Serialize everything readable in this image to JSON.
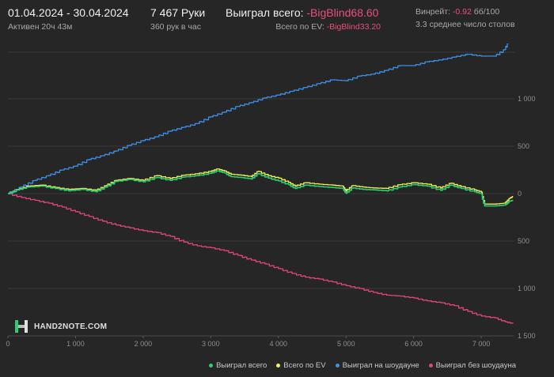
{
  "header": {
    "date_range": "01.04.2024 - 30.04.2024",
    "active_time": "Активен 20ч 43м",
    "hands": "7 467 Руки",
    "hands_per_hour": "360 рук в час",
    "won_total_label": "Выиграл всего:",
    "won_total_value": "-BigBlind68.60",
    "ev_label": "Всего по EV:",
    "ev_value": "-BigBlind33.20",
    "winrate_label": "Винрейт:",
    "winrate_value": "-0.92",
    "winrate_unit": "бб/100",
    "avg_tables": "3.3 среднее число столов"
  },
  "logo": {
    "text": "HAND2NOTE.COM"
  },
  "colors": {
    "won_total": "#2ecc71",
    "ev": "#f2f25a",
    "showdown": "#3d8fe8",
    "no_showdown": "#e0457a",
    "negative_text": "#e94f7c"
  },
  "chart_data": {
    "type": "line",
    "xlim": [
      0,
      7467
    ],
    "ylim": [
      -1500,
      1500
    ],
    "x_ticks": [
      0,
      1000,
      2000,
      3000,
      4000,
      5000,
      6000,
      7000
    ],
    "x_tick_labels": [
      "0",
      "1 000",
      "2 000",
      "3 000",
      "4 000",
      "5 000",
      "6 000",
      "7 000"
    ],
    "y_ticks": [
      1000,
      500,
      0,
      -500,
      -1000,
      -1500
    ],
    "y_tick_labels": [
      "1 000",
      "500",
      "0",
      "500",
      "1 000",
      "1 500"
    ],
    "grid": true,
    "legend_position": "bottom-right",
    "series": [
      {
        "name": "Выиграл всего",
        "color": "#2ecc71",
        "points": [
          [
            0,
            0
          ],
          [
            150,
            40
          ],
          [
            300,
            70
          ],
          [
            500,
            80
          ],
          [
            700,
            55
          ],
          [
            900,
            30
          ],
          [
            1100,
            45
          ],
          [
            1300,
            20
          ],
          [
            1450,
            70
          ],
          [
            1600,
            130
          ],
          [
            1800,
            150
          ],
          [
            2000,
            125
          ],
          [
            2200,
            170
          ],
          [
            2400,
            140
          ],
          [
            2600,
            175
          ],
          [
            2800,
            190
          ],
          [
            3000,
            215
          ],
          [
            3100,
            240
          ],
          [
            3200,
            220
          ],
          [
            3300,
            180
          ],
          [
            3450,
            170
          ],
          [
            3600,
            155
          ],
          [
            3700,
            210
          ],
          [
            3850,
            165
          ],
          [
            4000,
            135
          ],
          [
            4150,
            95
          ],
          [
            4250,
            55
          ],
          [
            4400,
            90
          ],
          [
            4600,
            75
          ],
          [
            4800,
            65
          ],
          [
            4950,
            55
          ],
          [
            5000,
            5
          ],
          [
            5100,
            60
          ],
          [
            5250,
            45
          ],
          [
            5400,
            40
          ],
          [
            5600,
            30
          ],
          [
            5800,
            70
          ],
          [
            6000,
            95
          ],
          [
            6200,
            80
          ],
          [
            6400,
            35
          ],
          [
            6550,
            90
          ],
          [
            6700,
            55
          ],
          [
            6900,
            20
          ],
          [
            7000,
            0
          ],
          [
            7050,
            -130
          ],
          [
            7200,
            -130
          ],
          [
            7350,
            -120
          ],
          [
            7420,
            -80
          ],
          [
            7467,
            -70
          ]
        ]
      },
      {
        "name": "Всего по EV",
        "color": "#f2f25a",
        "points": [
          [
            0,
            0
          ],
          [
            150,
            45
          ],
          [
            300,
            80
          ],
          [
            500,
            90
          ],
          [
            700,
            65
          ],
          [
            900,
            45
          ],
          [
            1100,
            55
          ],
          [
            1300,
            35
          ],
          [
            1450,
            85
          ],
          [
            1600,
            140
          ],
          [
            1800,
            160
          ],
          [
            2000,
            140
          ],
          [
            2200,
            190
          ],
          [
            2400,
            160
          ],
          [
            2600,
            195
          ],
          [
            2800,
            210
          ],
          [
            3000,
            235
          ],
          [
            3100,
            260
          ],
          [
            3200,
            240
          ],
          [
            3300,
            205
          ],
          [
            3450,
            195
          ],
          [
            3600,
            180
          ],
          [
            3700,
            235
          ],
          [
            3850,
            190
          ],
          [
            4000,
            165
          ],
          [
            4150,
            120
          ],
          [
            4250,
            80
          ],
          [
            4400,
            115
          ],
          [
            4600,
            100
          ],
          [
            4800,
            90
          ],
          [
            4950,
            80
          ],
          [
            5000,
            30
          ],
          [
            5100,
            85
          ],
          [
            5250,
            70
          ],
          [
            5400,
            60
          ],
          [
            5600,
            55
          ],
          [
            5800,
            95
          ],
          [
            6000,
            115
          ],
          [
            6200,
            100
          ],
          [
            6400,
            60
          ],
          [
            6550,
            110
          ],
          [
            6700,
            75
          ],
          [
            6900,
            40
          ],
          [
            7000,
            20
          ],
          [
            7050,
            -110
          ],
          [
            7200,
            -110
          ],
          [
            7350,
            -100
          ],
          [
            7420,
            -50
          ],
          [
            7467,
            -30
          ]
        ]
      },
      {
        "name": "Выиграл на шоудауне",
        "color": "#3d8fe8",
        "points": [
          [
            0,
            0
          ],
          [
            200,
            70
          ],
          [
            400,
            140
          ],
          [
            600,
            190
          ],
          [
            800,
            250
          ],
          [
            1000,
            290
          ],
          [
            1200,
            360
          ],
          [
            1400,
            400
          ],
          [
            1600,
            450
          ],
          [
            1800,
            510
          ],
          [
            2000,
            560
          ],
          [
            2200,
            600
          ],
          [
            2400,
            660
          ],
          [
            2600,
            700
          ],
          [
            2800,
            740
          ],
          [
            3000,
            810
          ],
          [
            3200,
            860
          ],
          [
            3400,
            920
          ],
          [
            3600,
            960
          ],
          [
            3800,
            1010
          ],
          [
            4000,
            1040
          ],
          [
            4200,
            1080
          ],
          [
            4400,
            1120
          ],
          [
            4600,
            1160
          ],
          [
            4800,
            1200
          ],
          [
            5000,
            1190
          ],
          [
            5200,
            1240
          ],
          [
            5400,
            1260
          ],
          [
            5600,
            1300
          ],
          [
            5800,
            1350
          ],
          [
            6000,
            1350
          ],
          [
            6200,
            1390
          ],
          [
            6400,
            1410
          ],
          [
            6600,
            1440
          ],
          [
            6800,
            1470
          ],
          [
            7000,
            1450
          ],
          [
            7200,
            1450
          ],
          [
            7350,
            1520
          ],
          [
            7420,
            1640
          ],
          [
            7467,
            1600
          ]
        ]
      },
      {
        "name": "Выиграл без шоудауна",
        "color": "#e0457a",
        "points": [
          [
            0,
            0
          ],
          [
            200,
            -40
          ],
          [
            400,
            -70
          ],
          [
            600,
            -100
          ],
          [
            800,
            -140
          ],
          [
            1000,
            -190
          ],
          [
            1200,
            -240
          ],
          [
            1400,
            -290
          ],
          [
            1600,
            -330
          ],
          [
            1800,
            -360
          ],
          [
            2000,
            -390
          ],
          [
            2200,
            -410
          ],
          [
            2400,
            -450
          ],
          [
            2600,
            -510
          ],
          [
            2800,
            -550
          ],
          [
            3000,
            -570
          ],
          [
            3200,
            -600
          ],
          [
            3400,
            -650
          ],
          [
            3600,
            -700
          ],
          [
            3800,
            -740
          ],
          [
            4000,
            -790
          ],
          [
            4200,
            -840
          ],
          [
            4400,
            -880
          ],
          [
            4600,
            -900
          ],
          [
            4800,
            -930
          ],
          [
            5000,
            -970
          ],
          [
            5200,
            -1000
          ],
          [
            5400,
            -1040
          ],
          [
            5600,
            -1070
          ],
          [
            5800,
            -1080
          ],
          [
            6000,
            -1100
          ],
          [
            6200,
            -1130
          ],
          [
            6400,
            -1150
          ],
          [
            6600,
            -1180
          ],
          [
            6800,
            -1240
          ],
          [
            7000,
            -1290
          ],
          [
            7200,
            -1310
          ],
          [
            7350,
            -1350
          ],
          [
            7467,
            -1370
          ]
        ]
      }
    ]
  }
}
